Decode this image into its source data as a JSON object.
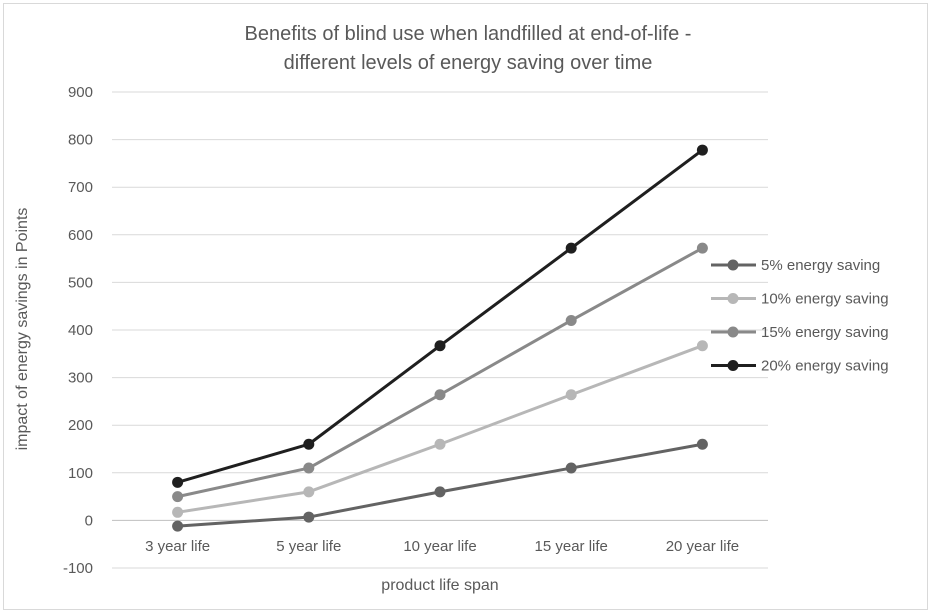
{
  "chart_data": {
    "type": "line",
    "title_lines": [
      "Benefits of blind use when landfilled at end-of-life -",
      "different levels of energy saving over time"
    ],
    "xlabel": "product life span",
    "ylabel": "impact of energy savings in Points",
    "categories": [
      "3 year life",
      "5 year life",
      "10 year life",
      "15 year life",
      "20 year life"
    ],
    "ylim": [
      -100,
      900
    ],
    "ytick_step": 100,
    "grid": true,
    "legend_position": "right",
    "series": [
      {
        "name": "5% energy saving",
        "color": "#636363",
        "values": [
          -12,
          7,
          60,
          110,
          160
        ]
      },
      {
        "name": "10% energy saving",
        "color": "#b7b7b7",
        "values": [
          17,
          60,
          160,
          264,
          367
        ]
      },
      {
        "name": "15% energy saving",
        "color": "#898989",
        "values": [
          50,
          110,
          264,
          420,
          572
        ]
      },
      {
        "name": "20% energy saving",
        "color": "#1f1f1f",
        "values": [
          80,
          160,
          367,
          572,
          778
        ]
      }
    ]
  }
}
